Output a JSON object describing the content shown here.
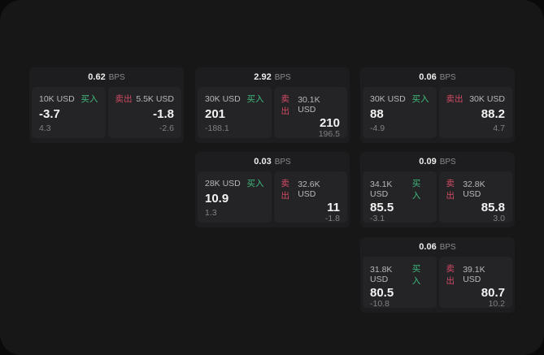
{
  "labels": {
    "buy": "买入",
    "sell": "卖出",
    "bps_unit": "BPS"
  },
  "colors": {
    "buy_green": "#3fbb7d",
    "sell_red": "#d24a64",
    "window_bg": "#171718",
    "card_bg": "#1d1d1f",
    "panel_bg": "#242427"
  },
  "cards": [
    {
      "bps": "0.62",
      "buy": {
        "amount": "10K USD",
        "price": "-3.7",
        "delta": "4.3"
      },
      "sell": {
        "amount": "5.5K USD",
        "price": "-1.8",
        "delta": "-2.6"
      }
    },
    {
      "bps": "2.92",
      "buy": {
        "amount": "30K USD",
        "price": "201",
        "delta": "-188.1"
      },
      "sell": {
        "amount": "30.1K USD",
        "price": "210",
        "delta": "196.5"
      }
    },
    {
      "bps": "0.06",
      "buy": {
        "amount": "30K USD",
        "price": "88",
        "delta": "-4.9"
      },
      "sell": {
        "amount": "30K USD",
        "price": "88.2",
        "delta": "4.7"
      }
    },
    {
      "bps": "0.03",
      "buy": {
        "amount": "28K USD",
        "price": "10.9",
        "delta": "1.3"
      },
      "sell": {
        "amount": "32.6K USD",
        "price": "11",
        "delta": "-1.8"
      }
    },
    {
      "bps": "0.09",
      "buy": {
        "amount": "34.1K USD",
        "price": "85.5",
        "delta": "-3.1"
      },
      "sell": {
        "amount": "32.8K USD",
        "price": "85.8",
        "delta": "3.0"
      }
    },
    {
      "bps": "0.06",
      "buy": {
        "amount": "31.8K USD",
        "price": "80.5",
        "delta": "-10.8"
      },
      "sell": {
        "amount": "39.1K USD",
        "price": "80.7",
        "delta": "10.2"
      }
    }
  ]
}
